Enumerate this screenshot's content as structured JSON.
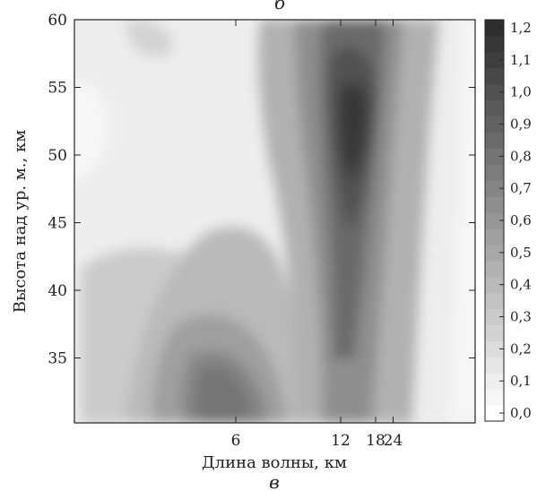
{
  "chart_data": {
    "type": "heatmap",
    "title": "",
    "panel_label_top": "б",
    "panel_label_bottom": "в",
    "xlabel": "Длина волны, км",
    "ylabel": "Высота над ур. м., км",
    "x_scale": "reciprocal",
    "x_ticks": [
      {
        "value": 6,
        "label": "6"
      },
      {
        "value": 12,
        "label": "12"
      },
      {
        "value": 18,
        "label": "18"
      },
      {
        "value": 24,
        "label": "24"
      }
    ],
    "y_ticks": [
      {
        "value": 35,
        "label": "35"
      },
      {
        "value": 40,
        "label": "40"
      },
      {
        "value": 45,
        "label": "45"
      },
      {
        "value": 50,
        "label": "50"
      },
      {
        "value": 55,
        "label": "55"
      },
      {
        "value": 60,
        "label": "60"
      }
    ],
    "ylim": [
      30.2,
      60
    ],
    "colorbar": {
      "min": 0.0,
      "max": 1.2,
      "step": 0.05,
      "tick_labels": [
        "0,0",
        "0,1",
        "0,2",
        "0,3",
        "0,4",
        "0,5",
        "0,6",
        "0,7",
        "0,8",
        "0,9",
        "1,0",
        "1,1",
        "1,2"
      ],
      "color_low": "#ffffff",
      "color_high": "#2e2e2e"
    },
    "grid": false,
    "field_description": "Maximum intensity (~1.2) in a band near wavelength 12–15 km at heights 47–58 km; secondary values ~0.7–0.8 near 5–7 km at 32–36 km; lowest values (~0.05) near the left edge around 52 km and at the far right edge."
  }
}
